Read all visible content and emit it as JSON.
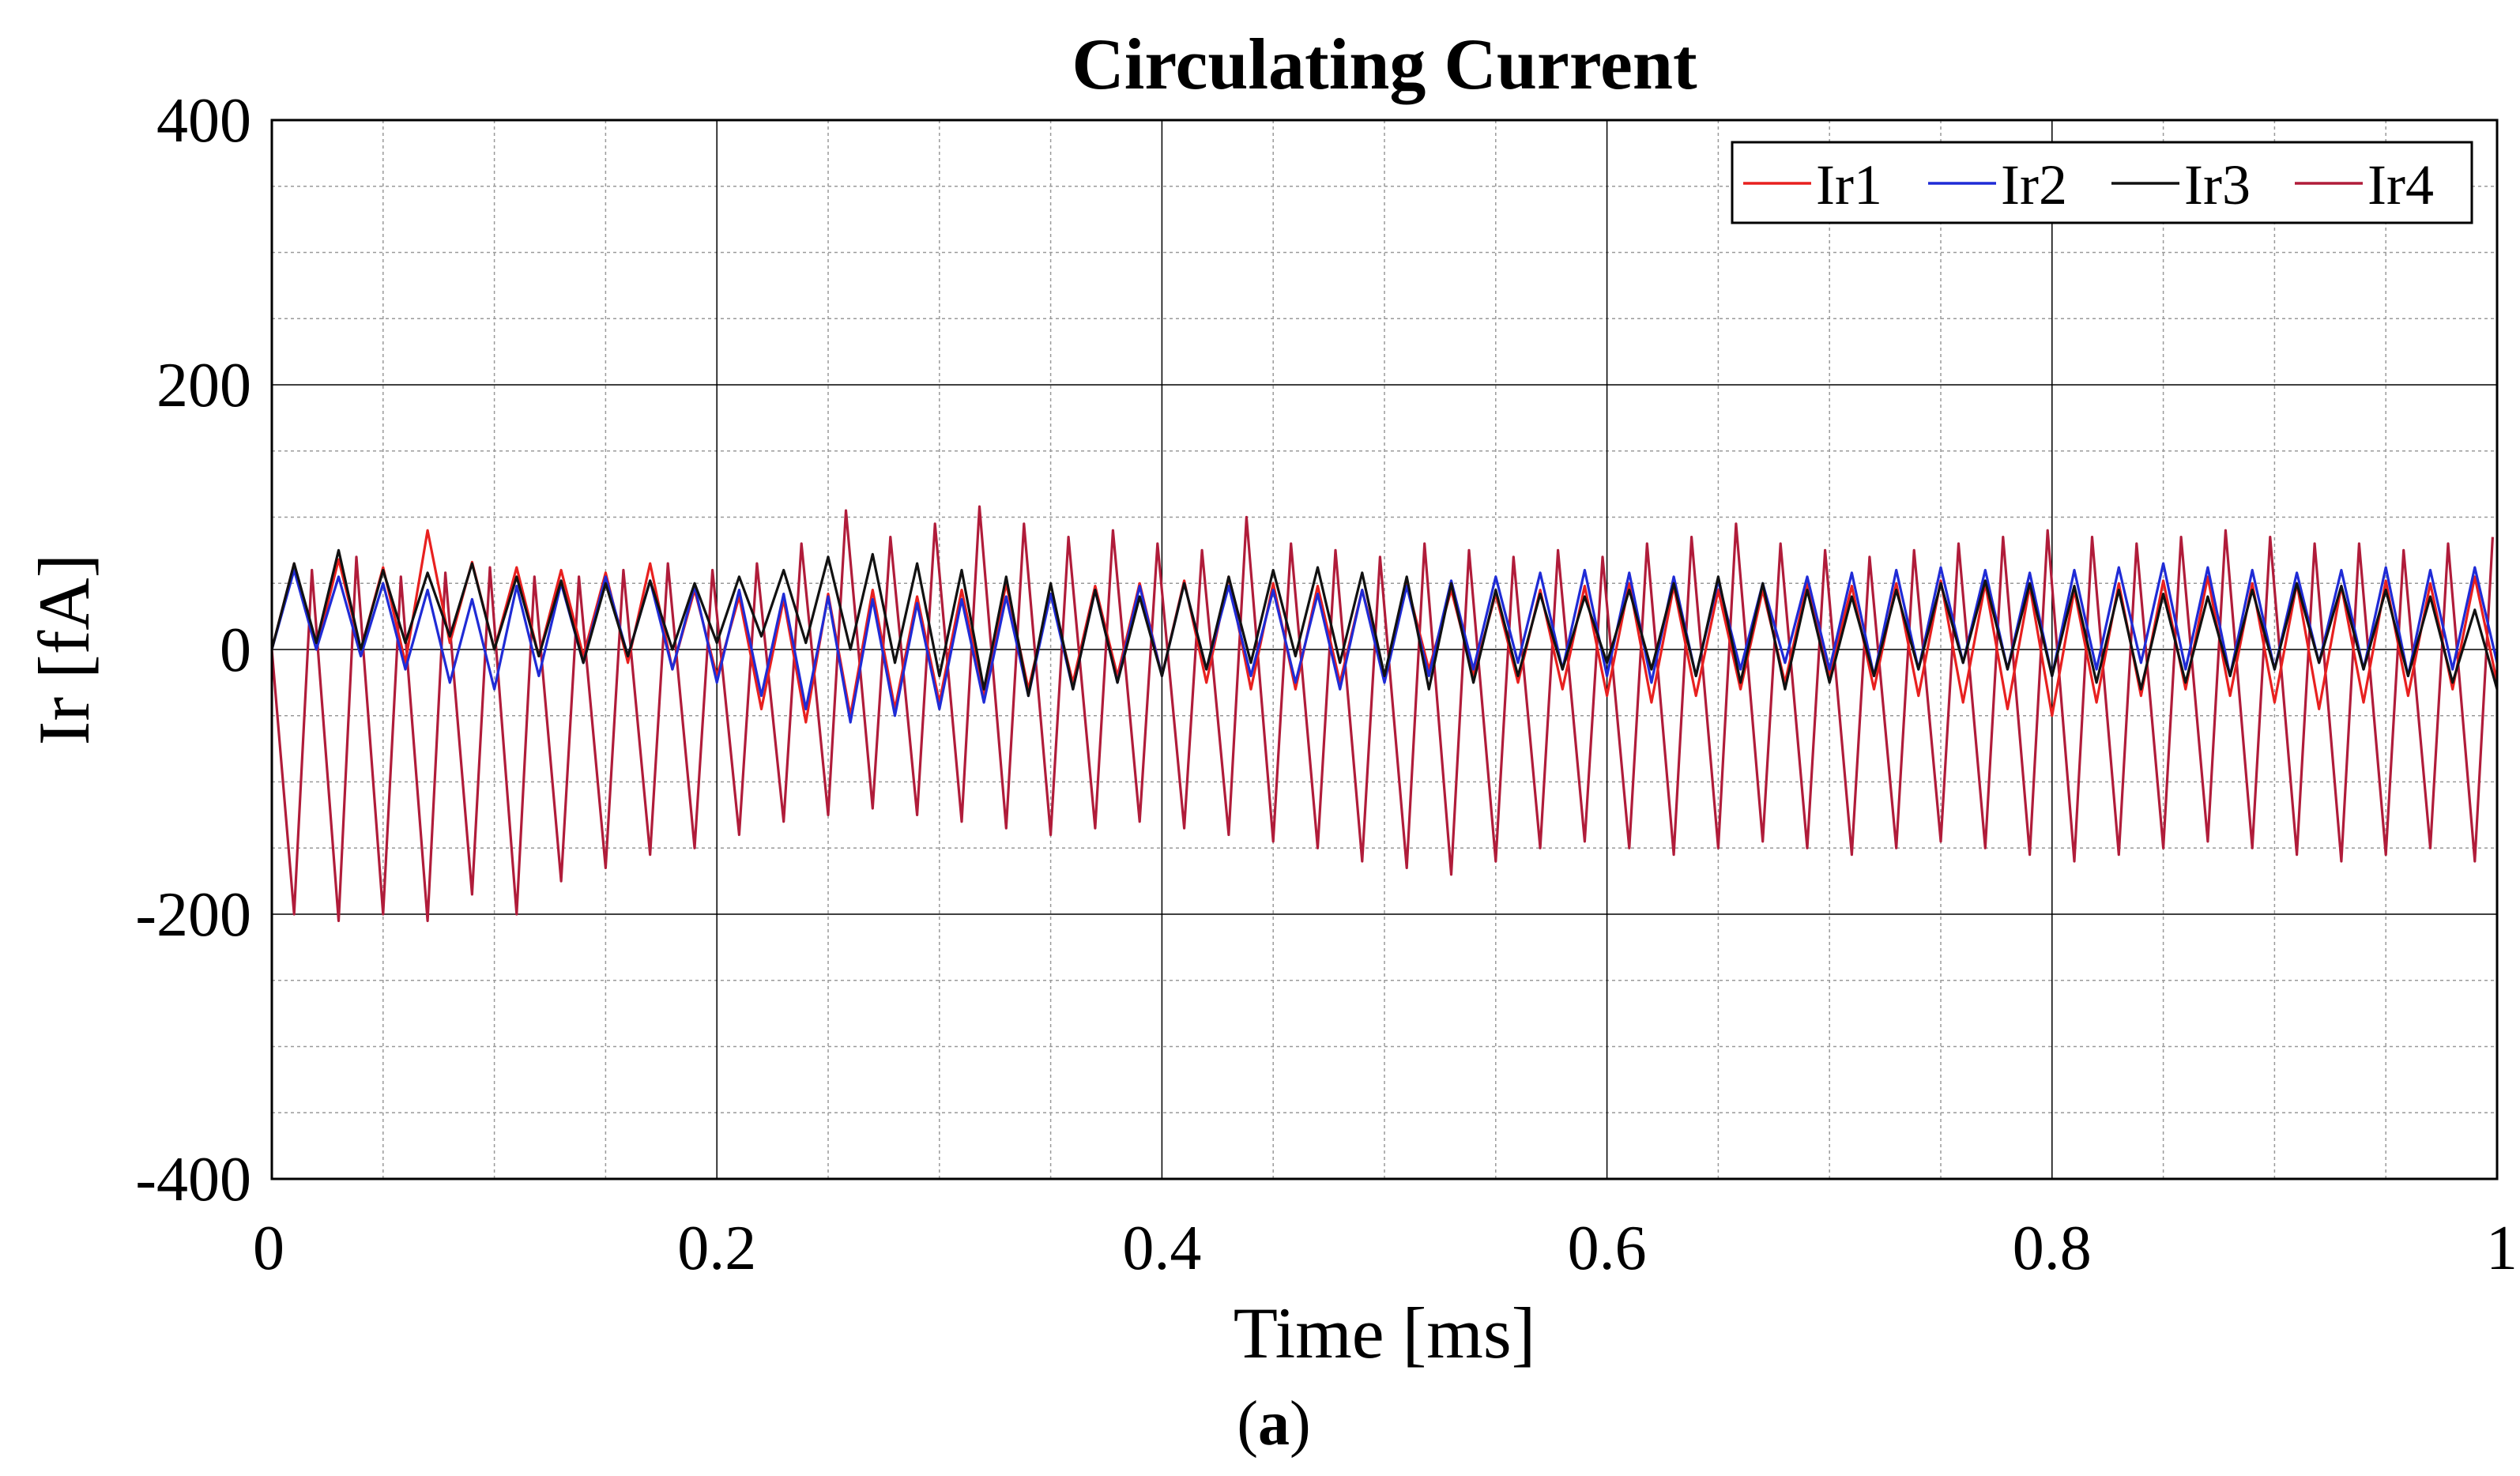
{
  "chart_data": {
    "type": "line",
    "title": "Circulating Current",
    "xlabel": "Time [ms]",
    "ylabel": "Ir [fA]",
    "caption_prefix": "(",
    "caption_letter": "a",
    "caption_suffix": ")",
    "xlim": [
      0,
      1
    ],
    "ylim": [
      -400,
      400
    ],
    "x_ticks": [
      0,
      0.2,
      0.4,
      0.6,
      0.8,
      1
    ],
    "x_tick_labels": [
      "0",
      "0.2",
      "0.4",
      "0.6",
      "0.8",
      "1"
    ],
    "y_ticks": [
      400,
      200,
      0,
      -200,
      -400
    ],
    "y_tick_labels": [
      "400",
      "200",
      "0",
      "-200",
      "-400"
    ],
    "x_minor_step": 0.05,
    "y_minor_step": 50,
    "grid": true,
    "legend_position": "top-right",
    "switching_period_ms": 0.02,
    "series": [
      {
        "name": "Ir1",
        "color": "#e8201f",
        "peak_values": [
          65,
          68,
          62,
          90,
          66,
          62,
          60,
          58,
          65,
          45,
          40,
          38,
          42,
          45,
          40,
          45,
          50,
          42,
          48,
          50,
          52,
          55,
          50,
          48,
          45,
          50,
          45,
          42,
          45,
          48,
          50,
          48,
          45,
          45,
          50,
          48,
          50,
          52,
          50,
          48,
          45,
          50,
          52,
          55,
          50,
          50,
          48,
          52,
          50,
          55
        ],
        "valley_values": [
          0,
          0,
          -10,
          5,
          0,
          -5,
          -5,
          -10,
          -15,
          -20,
          -45,
          -55,
          -50,
          -45,
          -40,
          -35,
          -30,
          -25,
          -20,
          -20,
          -25,
          -30,
          -30,
          -25,
          -20,
          -15,
          -20,
          -25,
          -30,
          -35,
          -40,
          -35,
          -30,
          -25,
          -20,
          -30,
          -35,
          -40,
          -45,
          -50,
          -40,
          -35,
          -30,
          -35,
          -40,
          -45,
          -40,
          -35,
          -30,
          -25
        ]
      },
      {
        "name": "Ir2",
        "color": "#1f2bd6",
        "peak_values": [
          60,
          55,
          50,
          45,
          38,
          48,
          50,
          55,
          52,
          48,
          45,
          42,
          40,
          38,
          35,
          38,
          40,
          42,
          45,
          48,
          50,
          48,
          45,
          42,
          45,
          48,
          52,
          55,
          58,
          60,
          58,
          55,
          52,
          50,
          55,
          58,
          60,
          62,
          60,
          58,
          60,
          62,
          65,
          62,
          60,
          58,
          60,
          62,
          60,
          62
        ],
        "valley_values": [
          0,
          -5,
          -15,
          -25,
          -30,
          -20,
          -10,
          -5,
          -15,
          -25,
          -35,
          -45,
          -55,
          -50,
          -45,
          -40,
          -35,
          -30,
          -25,
          -20,
          -15,
          -20,
          -25,
          -30,
          -25,
          -20,
          -15,
          -10,
          -15,
          -20,
          -25,
          -20,
          -15,
          -10,
          -15,
          -20,
          -15,
          -10,
          -15,
          -20,
          -15,
          -10,
          -15,
          -20,
          -15,
          -10,
          -15,
          -20,
          -15,
          -10
        ]
      },
      {
        "name": "Ir3",
        "color": "#111111",
        "peak_values": [
          65,
          75,
          60,
          58,
          65,
          55,
          52,
          50,
          52,
          50,
          55,
          60,
          70,
          72,
          65,
          60,
          55,
          50,
          45,
          40,
          50,
          55,
          60,
          62,
          58,
          55,
          50,
          45,
          42,
          40,
          45,
          50,
          55,
          50,
          45,
          40,
          45,
          50,
          52,
          50,
          48,
          45,
          42,
          40,
          45,
          50,
          48,
          45,
          40,
          30
        ],
        "valley_values": [
          5,
          0,
          5,
          10,
          0,
          -5,
          -10,
          -5,
          0,
          5,
          10,
          5,
          0,
          -10,
          -20,
          -30,
          -35,
          -30,
          -25,
          -20,
          -15,
          -10,
          -5,
          -10,
          -20,
          -30,
          -25,
          -20,
          -15,
          -10,
          -15,
          -20,
          -25,
          -30,
          -25,
          -20,
          -15,
          -10,
          -15,
          -20,
          -25,
          -30,
          -25,
          -20,
          -15,
          -10,
          -15,
          -20,
          -25,
          -30
        ]
      },
      {
        "name": "Ir4",
        "color": "#b01c3a",
        "peak_values": [
          60,
          70,
          55,
          58,
          62,
          55,
          55,
          60,
          65,
          60,
          65,
          80,
          105,
          85,
          95,
          108,
          95,
          85,
          90,
          80,
          75,
          100,
          80,
          75,
          70,
          80,
          75,
          70,
          75,
          70,
          80,
          85,
          95,
          80,
          75,
          70,
          75,
          80,
          85,
          90,
          85,
          80,
          85,
          90,
          85,
          80,
          80,
          75,
          80,
          85
        ],
        "valley_values": [
          -200,
          -205,
          -200,
          -205,
          -185,
          -200,
          -175,
          -165,
          -155,
          -150,
          -140,
          -130,
          -125,
          -120,
          -125,
          -130,
          -135,
          -140,
          -135,
          -130,
          -135,
          -140,
          -145,
          -150,
          -160,
          -165,
          -170,
          -160,
          -150,
          -145,
          -150,
          -155,
          -150,
          -145,
          -150,
          -155,
          -150,
          -145,
          -150,
          -155,
          -160,
          -155,
          -150,
          -145,
          -150,
          -155,
          -160,
          -155,
          -150,
          -160
        ]
      }
    ]
  }
}
